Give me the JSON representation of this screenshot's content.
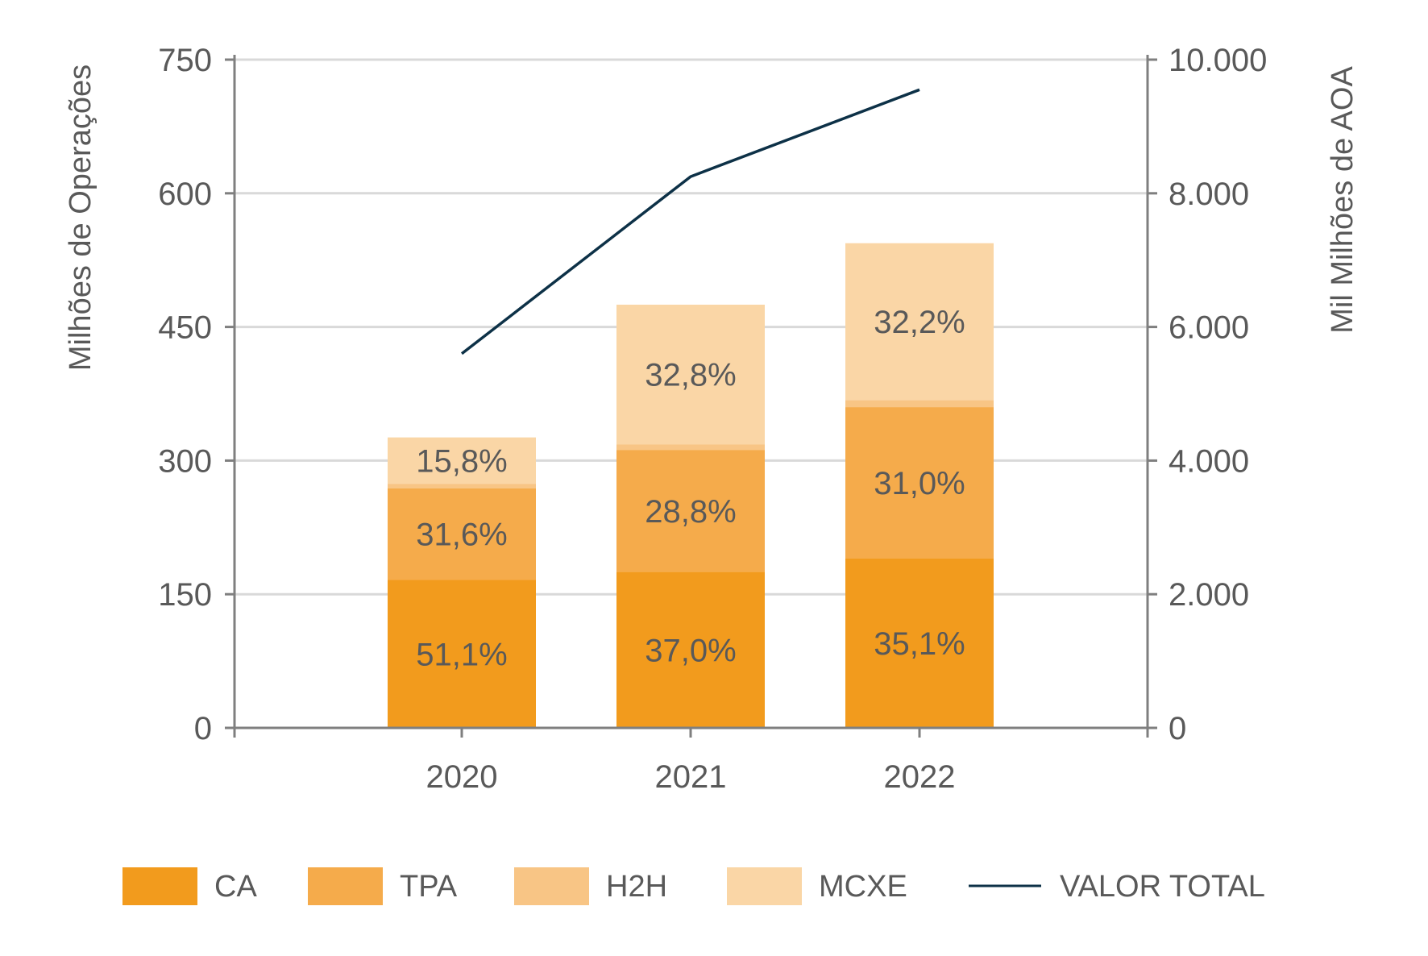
{
  "chart_data": {
    "type": "bar",
    "stacked": true,
    "title": "",
    "categories": [
      "2020",
      "2021",
      "2022"
    ],
    "ylabel": "Milhões de Operações",
    "y2label": "Mil Milhões de AOA",
    "ylim": [
      0,
      750
    ],
    "y2lim": [
      0,
      10000
    ],
    "yticks": [
      "0",
      "150",
      "300",
      "450",
      "600",
      "750"
    ],
    "y2ticks": [
      "0",
      "2.000",
      "4.000",
      "6.000",
      "8.000",
      "10.000"
    ],
    "grid": true,
    "legend_position": "bottom",
    "series": [
      {
        "name": "CA",
        "color": "#f29b1d",
        "values": [
          166,
          175,
          190
        ],
        "labels": [
          "51,1%",
          "37,0%",
          "35,1%"
        ]
      },
      {
        "name": "TPA",
        "color": "#f5ab4b",
        "values": [
          103,
          137,
          170
        ],
        "labels": [
          "31,6%",
          "28,8%",
          "31,0%"
        ]
      },
      {
        "name": "H2H",
        "color": "#f8c585",
        "values": [
          5,
          6,
          8
        ],
        "labels": [
          "",
          "",
          ""
        ]
      },
      {
        "name": "MCXE",
        "color": "#fad6a6",
        "values": [
          52,
          157,
          176
        ],
        "labels": [
          "15,8%",
          "32,8%",
          "32,2%"
        ]
      }
    ],
    "line": {
      "name": "VALOR TOTAL",
      "color": "#0d3147",
      "axis": "right",
      "values": [
        5600,
        8250,
        9550
      ]
    }
  }
}
